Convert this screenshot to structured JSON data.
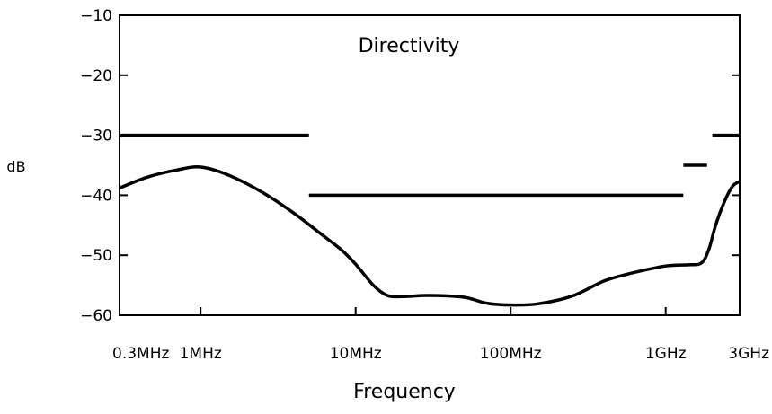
{
  "chart_data": {
    "type": "line",
    "title": "Directivity",
    "xlabel": "Frequency",
    "ylabel": "dB",
    "x_scale": "log",
    "xlim_hz": [
      300000,
      3000000000
    ],
    "ylim": [
      -60,
      -10
    ],
    "yticks": [
      -10,
      -20,
      -30,
      -40,
      -50,
      -60
    ],
    "xticks": [
      {
        "label": "0.3MHz",
        "hz": 300000
      },
      {
        "label": "1MHz",
        "hz": 1000000
      },
      {
        "label": "10MHz",
        "hz": 10000000
      },
      {
        "label": "100MHz",
        "hz": 100000000
      },
      {
        "label": "1GHz",
        "hz": 1000000000
      },
      {
        "label": "3GHz",
        "hz": 3000000000
      }
    ],
    "grid": false,
    "series": [
      {
        "kind": "curve",
        "x_hz": [
          300000,
          450000,
          700000,
          1000000,
          1500000,
          2500000,
          4000000,
          6000000,
          8000000,
          10000000,
          13000000,
          16000000,
          20000000,
          30000000,
          50000000,
          70000000,
          100000000,
          150000000,
          250000000,
          400000000,
          600000000,
          1000000000,
          1400000000,
          1700000000,
          1900000000,
          2100000000,
          2400000000,
          2700000000,
          3000000000
        ],
        "y_db": [
          -38.8,
          -37.0,
          -35.8,
          -35.3,
          -36.6,
          -39.5,
          -43.0,
          -46.5,
          -49.0,
          -51.5,
          -55.0,
          -56.7,
          -56.9,
          -56.7,
          -57.0,
          -58.0,
          -58.3,
          -58.1,
          -56.8,
          -54.3,
          -53.0,
          -51.8,
          -51.6,
          -51.3,
          -49.0,
          -45.0,
          -41.0,
          -38.5,
          -37.7
        ]
      },
      {
        "kind": "spec-limit",
        "segments": [
          {
            "x_hz": [
              300000,
              5000000
            ],
            "y_db": -30
          },
          {
            "x_hz": [
              5000000,
              1300000000
            ],
            "y_db": -40
          },
          {
            "x_hz": [
              1300000000,
              1850000000
            ],
            "y_db": -35
          },
          {
            "x_hz": [
              2000000000,
              3000000000
            ],
            "y_db": -30
          }
        ]
      }
    ]
  }
}
